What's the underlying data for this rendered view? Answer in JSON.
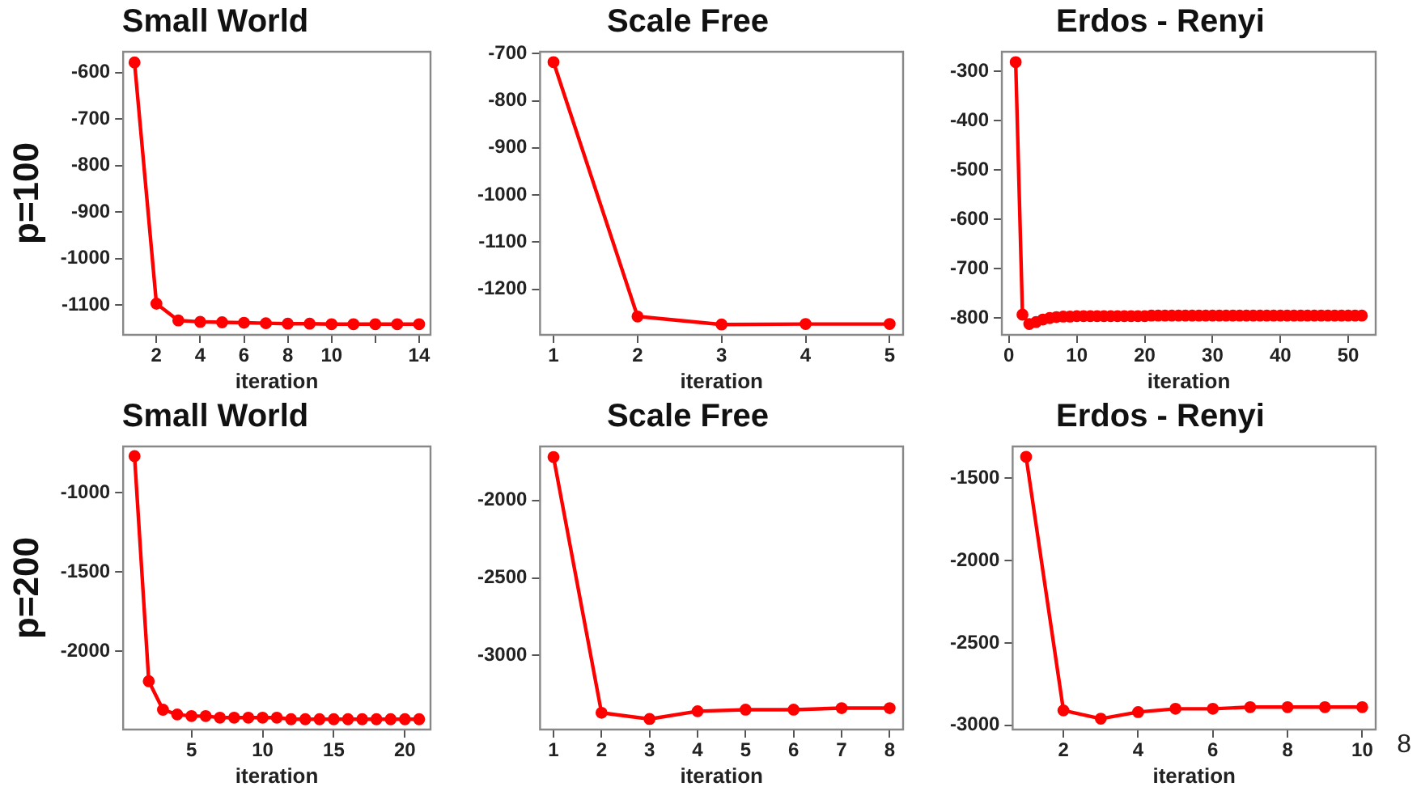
{
  "chart_data": [
    {
      "type": "line",
      "title": "Small World",
      "xlabel": "iteration",
      "ylabel": "p=100",
      "x": [
        1,
        2,
        3,
        4,
        5,
        6,
        7,
        8,
        9,
        10,
        11,
        12,
        13,
        14
      ],
      "series": [
        {
          "color": "#ff0000",
          "values": [
            -578,
            -1097,
            -1133,
            -1136,
            -1137,
            -1138,
            -1139,
            -1140,
            -1140,
            -1141,
            -1141,
            -1141,
            -1141,
            -1141
          ]
        }
      ],
      "xlim": [
        0.48,
        14.52
      ],
      "xticks": [
        2,
        4,
        6,
        8,
        10,
        {
          "value": 12,
          "label": null
        },
        14
      ],
      "ylim": [
        -1164,
        -555
      ],
      "yticks": [
        -600,
        -700,
        -800,
        -900,
        -1000,
        -1100
      ],
      "grid": false,
      "legend": false,
      "marker": "circle",
      "line_style": "solid"
    },
    {
      "type": "line",
      "title": "Scale Free",
      "xlabel": "iteration",
      "x": [
        1,
        2,
        3,
        4,
        5
      ],
      "series": [
        {
          "color": "#ff0000",
          "values": [
            -718,
            -1258,
            -1275,
            -1274,
            -1274
          ]
        }
      ],
      "xlim": [
        0.84,
        5.16
      ],
      "xticks": [
        1,
        2,
        3,
        4,
        5
      ],
      "ylim": [
        -1297,
        -696
      ],
      "yticks": [
        -700,
        -800,
        -900,
        -1000,
        -1100,
        -1200
      ],
      "grid": false,
      "legend": false,
      "marker": "circle",
      "line_style": "solid"
    },
    {
      "type": "line",
      "title": "Erdos - Renyi",
      "xlabel": "iteration",
      "x": [
        1,
        2,
        3,
        4,
        5,
        6,
        7,
        8,
        9,
        10,
        11,
        12,
        13,
        14,
        15,
        16,
        17,
        18,
        19,
        20,
        21,
        22,
        23,
        24,
        25,
        26,
        27,
        28,
        29,
        30,
        31,
        32,
        33,
        34,
        35,
        36,
        37,
        38,
        39,
        40,
        41,
        42,
        43,
        44,
        45,
        46,
        47,
        48,
        49,
        50,
        51,
        52
      ],
      "series": [
        {
          "color": "#ff0000",
          "values": [
            -281,
            -793,
            -812,
            -808,
            -803,
            -800,
            -798,
            -797,
            -797,
            -796,
            -796,
            -796,
            -796,
            -796,
            -796,
            -796,
            -796,
            -796,
            -796,
            -796,
            -795,
            -795,
            -795,
            -795,
            -795,
            -795,
            -795,
            -795,
            -795,
            -795,
            -795,
            -795,
            -795,
            -795,
            -795,
            -795,
            -795,
            -795,
            -795,
            -795,
            -795,
            -795,
            -795,
            -795,
            -795,
            -795,
            -795,
            -795,
            -795,
            -795,
            -795,
            -795
          ]
        }
      ],
      "xlim": [
        -1.04,
        54.04
      ],
      "xticks": [
        0,
        10,
        20,
        30,
        40,
        50
      ],
      "ylim": [
        -834,
        -260
      ],
      "yticks": [
        -300,
        -400,
        -500,
        -600,
        -700,
        -800
      ],
      "grid": false,
      "legend": false,
      "marker": "circle",
      "line_style": "solid"
    },
    {
      "type": "line",
      "title": "Small World",
      "xlabel": "iteration",
      "ylabel": "p=200",
      "x": [
        1,
        2,
        3,
        4,
        5,
        6,
        7,
        8,
        9,
        10,
        11,
        12,
        13,
        14,
        15,
        16,
        17,
        18,
        19,
        20,
        21
      ],
      "series": [
        {
          "color": "#ff0000",
          "values": [
            -770,
            -2190,
            -2370,
            -2400,
            -2410,
            -2410,
            -2420,
            -2420,
            -2420,
            -2420,
            -2420,
            -2430,
            -2430,
            -2430,
            -2430,
            -2430,
            -2430,
            -2430,
            -2430,
            -2430,
            -2430
          ]
        }
      ],
      "xlim": [
        0.2,
        21.8
      ],
      "xticks": [
        5,
        10,
        15,
        20
      ],
      "ylim": [
        -2495,
        -709
      ],
      "yticks": [
        -1000,
        -1500,
        -2000
      ],
      "grid": false,
      "legend": false,
      "marker": "circle",
      "line_style": "solid"
    },
    {
      "type": "line",
      "title": "Scale Free",
      "xlabel": "iteration",
      "x": [
        1,
        2,
        3,
        4,
        5,
        6,
        7,
        8
      ],
      "series": [
        {
          "color": "#ff0000",
          "values": [
            -1720,
            -3370,
            -3410,
            -3360,
            -3350,
            -3350,
            -3340,
            -3340
          ]
        }
      ],
      "xlim": [
        0.72,
        8.28
      ],
      "xticks": [
        1,
        2,
        3,
        4,
        5,
        6,
        7,
        8
      ],
      "ylim": [
        -3478,
        -1652
      ],
      "yticks": [
        -2000,
        -2500,
        -3000
      ],
      "grid": false,
      "legend": false,
      "marker": "circle",
      "line_style": "solid"
    },
    {
      "type": "line",
      "title": "Erdos - Renyi",
      "xlabel": "iteration",
      "x": [
        1,
        2,
        3,
        4,
        5,
        6,
        7,
        8,
        9,
        10
      ],
      "series": [
        {
          "color": "#ff0000",
          "values": [
            -1370,
            -2910,
            -2960,
            -2920,
            -2900,
            -2900,
            -2890,
            -2890,
            -2890,
            -2890
          ]
        }
      ],
      "xlim": [
        0.64,
        10.36
      ],
      "xticks": [
        2,
        4,
        6,
        8,
        10
      ],
      "ylim": [
        -3026,
        -1307
      ],
      "yticks": [
        -1500,
        -2000,
        -2500,
        -3000
      ],
      "grid": false,
      "legend": false,
      "marker": "circle",
      "line_style": "solid",
      "annotations": [
        "8"
      ]
    }
  ]
}
